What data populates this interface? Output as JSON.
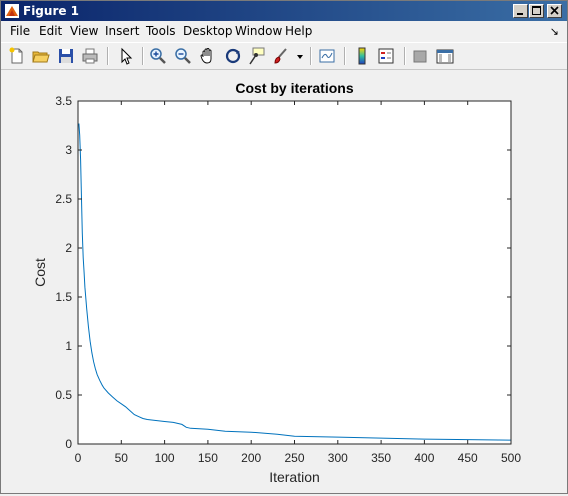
{
  "window": {
    "title": "Figure 1"
  },
  "menu": {
    "file": "File",
    "edit": "Edit",
    "view": "View",
    "insert": "Insert",
    "tools": "Tools",
    "desktop": "Desktop",
    "window": "Window",
    "help": "Help"
  },
  "toolbar_icons": [
    "new-figure-icon",
    "open-file-icon",
    "save-icon",
    "print-icon",
    "pointer-icon",
    "zoom-in-icon",
    "zoom-out-icon",
    "pan-icon",
    "rotate-3d-icon",
    "data-cursor-icon",
    "brush-icon",
    "link-plot-icon",
    "colorbar-icon",
    "legend-icon",
    "hide-plot-tools-icon",
    "show-plot-tools-icon"
  ],
  "colors": {
    "line": "#0072bd",
    "titlebar_start": "#0a246a",
    "titlebar_end": "#3a6ea5"
  },
  "chart_data": {
    "type": "line",
    "title": "Cost by iterations",
    "xlabel": "Iteration",
    "ylabel": "Cost",
    "xlim": [
      0,
      500
    ],
    "ylim": [
      0,
      3.5
    ],
    "xticks": [
      0,
      50,
      100,
      150,
      200,
      250,
      300,
      350,
      400,
      450,
      500
    ],
    "yticks": [
      0,
      0.5,
      1,
      1.5,
      2,
      2.5,
      3,
      3.5
    ],
    "ytick_labels": [
      "0",
      "0.5",
      "1",
      "1.5",
      "2",
      "2.5",
      "3",
      "3.5"
    ],
    "grid": false,
    "series": [
      {
        "x": [
          1,
          2,
          3,
          4,
          5,
          6,
          7,
          8,
          10,
          12,
          14,
          16,
          18,
          20,
          22,
          25,
          28,
          30,
          35,
          40,
          45,
          50,
          55,
          60,
          65,
          70,
          75,
          80,
          90,
          100,
          110,
          120,
          125,
          130,
          150,
          170,
          200,
          230,
          250,
          300,
          350,
          400,
          450,
          500
        ],
        "y": [
          3.27,
          3.15,
          2.9,
          2.5,
          2.15,
          1.9,
          1.75,
          1.6,
          1.38,
          1.2,
          1.05,
          0.93,
          0.84,
          0.77,
          0.71,
          0.65,
          0.6,
          0.57,
          0.52,
          0.48,
          0.44,
          0.41,
          0.38,
          0.34,
          0.3,
          0.28,
          0.26,
          0.25,
          0.24,
          0.23,
          0.22,
          0.2,
          0.17,
          0.16,
          0.15,
          0.13,
          0.12,
          0.1,
          0.08,
          0.07,
          0.06,
          0.05,
          0.045,
          0.04
        ]
      }
    ]
  }
}
